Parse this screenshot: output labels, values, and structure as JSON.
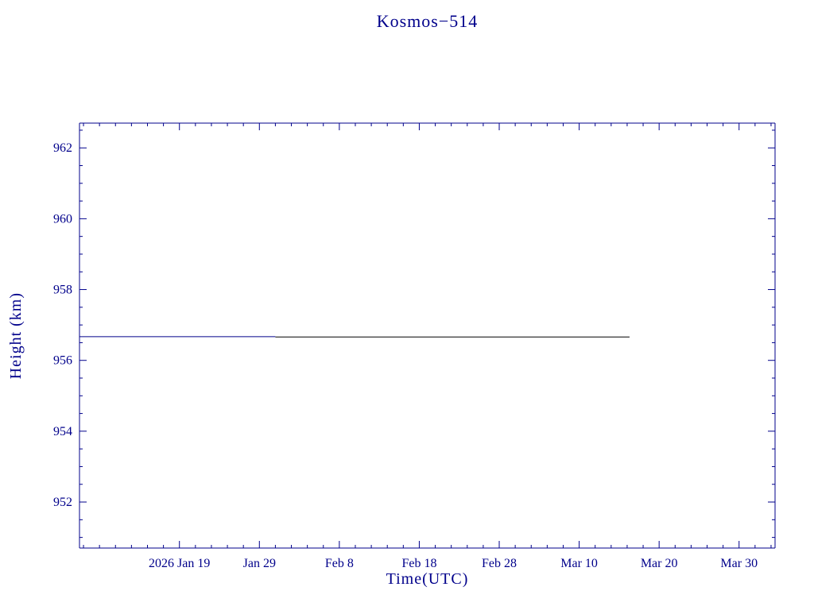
{
  "page": {
    "background": "#ffffff"
  },
  "chart_data": {
    "type": "line",
    "title": "Kosmos−514",
    "xlabel": "Time(UTC)",
    "ylabel": "Height (km)",
    "axis_color": "#00008B",
    "text_color": "#00008B",
    "grid": false,
    "xlim": [
      6.5,
      93.5
    ],
    "ylim": [
      950.7,
      962.7
    ],
    "x_ticks": [
      {
        "day": 19,
        "label": "2026 Jan 19"
      },
      {
        "day": 29,
        "label": "Jan 29"
      },
      {
        "day": 39,
        "label": "Feb 8"
      },
      {
        "day": 49,
        "label": "Feb 18"
      },
      {
        "day": 59,
        "label": "Feb 28"
      },
      {
        "day": 69,
        "label": "Mar 10"
      },
      {
        "day": 79,
        "label": "Mar 20"
      },
      {
        "day": 89,
        "label": "Mar 30"
      }
    ],
    "x_minor_step_days": 2,
    "y_ticks": [
      952,
      954,
      956,
      958,
      960,
      962
    ],
    "y_minor_step": 0.5,
    "series": [
      {
        "name": "height-observed",
        "color": "#00008B",
        "x": [
          6.5,
          31.0
        ],
        "y": [
          956.67,
          956.67
        ]
      },
      {
        "name": "height-predicted",
        "color": "#000000",
        "x": [
          31.0,
          75.3
        ],
        "y": [
          956.66,
          956.66
        ]
      }
    ]
  }
}
